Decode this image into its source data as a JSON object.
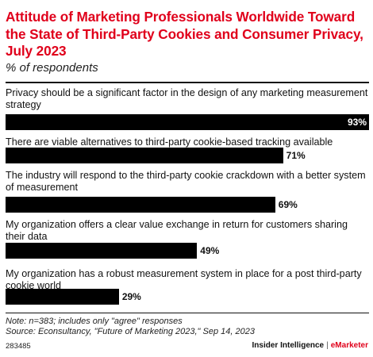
{
  "title": "Attitude of Marketing Professionals Worldwide Toward the State of Third-Party Cookies and Consumer Privacy, July 2023",
  "subtitle": "% of respondents",
  "colors": {
    "title": "#e0001b",
    "bar": "#000000",
    "brand_accent": "#e0001b"
  },
  "chart_data": {
    "type": "bar",
    "orientation": "horizontal",
    "categories": [
      "Privacy should be a significant factor in the design of any marketing measurement strategy",
      "There are viable alternatives to third-party cookie-based tracking available",
      "The industry will respond to the third-party cookie crackdown with a better system of measurement",
      "My organization offers a clear value exchange in return for customers sharing their data",
      "My organization has a robust measurement system in place for a post third-party cookie world"
    ],
    "values": [
      93,
      71,
      69,
      49,
      29
    ],
    "value_labels": [
      "93%",
      "71%",
      "69%",
      "49%",
      "29%"
    ],
    "xlim": [
      0,
      93
    ],
    "grid": false,
    "legend": "none"
  },
  "footer": {
    "note": "Note: n=383; includes only \"agree\" responses",
    "source": "Source: Econsultancy, \"Future of Marketing 2023,\" Sep 14, 2023",
    "chart_id": "283485",
    "brand_a": "Insider Intelligence",
    "brand_sep": "|",
    "brand_b": "eMarketer"
  }
}
